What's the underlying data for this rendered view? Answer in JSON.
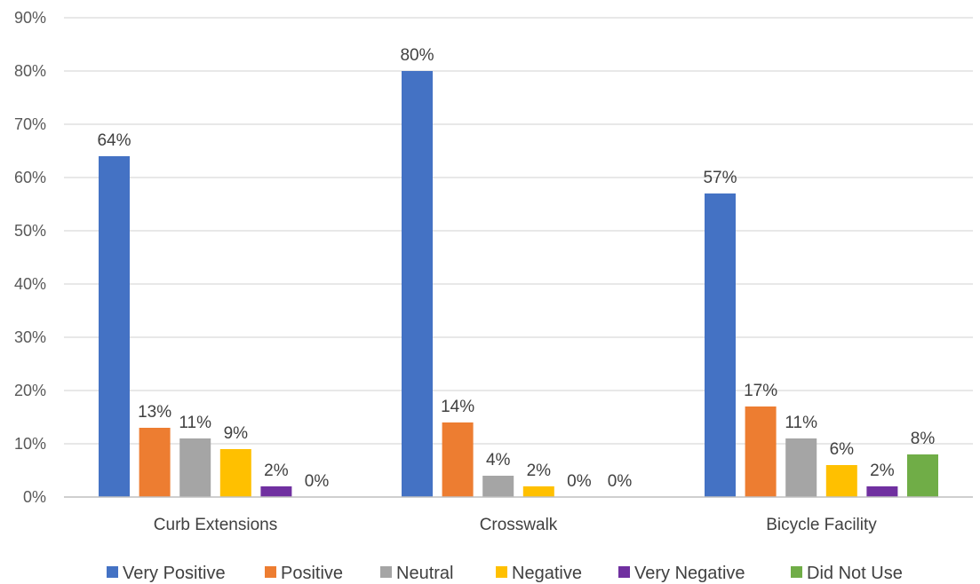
{
  "chart_data": {
    "type": "bar",
    "categories": [
      "Curb Extensions",
      "Crosswalk",
      "Bicycle Facility"
    ],
    "series": [
      {
        "name": "Very Positive",
        "color": "#4472C4",
        "values": [
          64,
          80,
          57
        ],
        "labels": [
          "64%",
          "80%",
          "57%"
        ]
      },
      {
        "name": "Positive",
        "color": "#ED7D31",
        "values": [
          13,
          14,
          17
        ],
        "labels": [
          "13%",
          "14%",
          "17%"
        ]
      },
      {
        "name": "Neutral",
        "color": "#A5A5A5",
        "values": [
          11,
          4,
          11
        ],
        "labels": [
          "11%",
          "4%",
          "11%"
        ]
      },
      {
        "name": "Negative",
        "color": "#FFC000",
        "values": [
          9,
          2,
          6
        ],
        "labels": [
          "9%",
          "2%",
          "6%"
        ]
      },
      {
        "name": "Very Negative",
        "color": "#7030A0",
        "values": [
          2,
          0,
          2
        ],
        "labels": [
          "2%",
          "0%",
          "2%"
        ]
      },
      {
        "name": "Did Not Use",
        "color": "#70AD47",
        "values": [
          0,
          0,
          8
        ],
        "labels": [
          "0%",
          "0%",
          "8%"
        ]
      }
    ],
    "ylim": [
      0,
      90
    ],
    "yticks": [
      "0%",
      "10%",
      "20%",
      "30%",
      "40%",
      "50%",
      "60%",
      "70%",
      "80%",
      "90%"
    ],
    "grid": true,
    "legend": "bottom",
    "title": "",
    "xlabel": "",
    "ylabel": ""
  }
}
